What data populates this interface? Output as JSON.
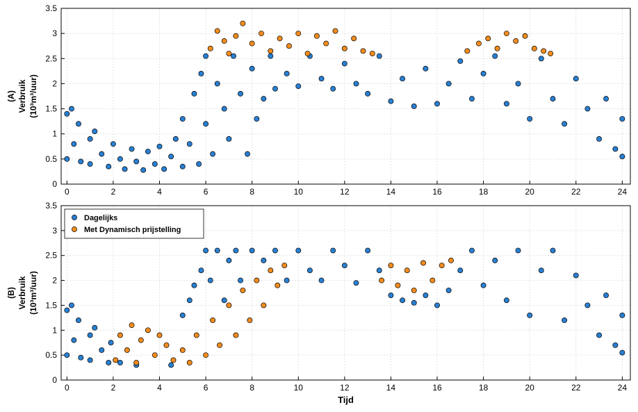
{
  "chart_data": [
    {
      "type": "scatter",
      "panel_label": "(A)",
      "ylabel": [
        "Verbruik",
        "(10³m³/uur)"
      ],
      "xlim": [
        -0.25,
        24.35
      ],
      "xticks": [
        0,
        2,
        4,
        6,
        8,
        10,
        12,
        14,
        16,
        18,
        20,
        22,
        24
      ],
      "ylim": [
        0,
        3.5
      ],
      "yticks": [
        0,
        0.5,
        1,
        1.5,
        2,
        2.5,
        3,
        3.5
      ],
      "grid": true,
      "series": [
        {
          "color": "#2a7fd0",
          "x": [
            0,
            0,
            0.2,
            0.3,
            0.5,
            0.6,
            1,
            1,
            1.2,
            1.5,
            1.8,
            2,
            2.3,
            2.5,
            2.8,
            3,
            3.3,
            3.5,
            3.8,
            4,
            4.2,
            4.5,
            4.7,
            5,
            5,
            5.3,
            5.5,
            5.7,
            5.8,
            6,
            6,
            6.3,
            6.5,
            6.8,
            7,
            7.2,
            7.5,
            7.8,
            8,
            8.2,
            8.5,
            8.8,
            9,
            9.5,
            10,
            10.5,
            11,
            11.5,
            12,
            12.5,
            13,
            13.5,
            14,
            14.5,
            15,
            15.5,
            16,
            16.5,
            17,
            17.5,
            18,
            18.5,
            19,
            19.5,
            20,
            20.5,
            21,
            21.5,
            22,
            22.5,
            23,
            23.3,
            23.7,
            24,
            24
          ],
          "values": [
            0.5,
            1.4,
            1.5,
            0.8,
            1.2,
            0.45,
            0.4,
            0.9,
            1.05,
            0.6,
            0.35,
            0.8,
            0.5,
            0.3,
            0.7,
            0.45,
            0.28,
            0.65,
            0.4,
            0.75,
            0.3,
            0.55,
            0.9,
            0.35,
            1.3,
            0.8,
            1.8,
            0.4,
            2.2,
            2.55,
            1.2,
            0.6,
            2.0,
            1.5,
            0.9,
            2.55,
            1.8,
            0.6,
            2.3,
            1.3,
            1.7,
            2.55,
            1.9,
            2.2,
            1.95,
            2.55,
            2.1,
            1.9,
            2.4,
            2.0,
            1.8,
            2.55,
            1.65,
            2.1,
            1.55,
            2.3,
            1.6,
            2.0,
            2.45,
            1.7,
            2.2,
            2.55,
            1.6,
            2.0,
            1.3,
            2.5,
            1.7,
            1.2,
            2.1,
            1.5,
            0.9,
            1.7,
            0.7,
            0.55,
            1.3
          ]
        },
        {
          "color": "#f28c1e",
          "x": [
            6.2,
            6.5,
            6.8,
            7,
            7.3,
            7.6,
            8,
            8.4,
            8.8,
            9.2,
            9.6,
            10,
            10.4,
            10.8,
            11.2,
            11.6,
            12,
            12.4,
            12.8,
            13.2,
            17.3,
            17.8,
            18.2,
            18.6,
            19,
            19.4,
            19.8,
            20.2,
            20.6,
            20.9
          ],
          "values": [
            2.7,
            3.05,
            2.85,
            2.6,
            2.95,
            3.2,
            2.8,
            3.0,
            2.65,
            2.9,
            2.75,
            3.0,
            2.6,
            2.95,
            2.8,
            3.05,
            2.7,
            2.9,
            2.65,
            2.6,
            2.65,
            2.8,
            2.9,
            2.7,
            3.0,
            2.85,
            2.95,
            2.7,
            2.65,
            2.6
          ]
        }
      ]
    },
    {
      "type": "scatter",
      "panel_label": "(B)",
      "ylabel": [
        "Verbruik",
        "(10³m³/uur)"
      ],
      "xlabel": "Tijd",
      "xlim": [
        -0.25,
        24.35
      ],
      "xticks": [
        0,
        2,
        4,
        6,
        8,
        10,
        12,
        14,
        16,
        18,
        20,
        22,
        24
      ],
      "ylim": [
        0,
        3.5
      ],
      "yticks": [
        0,
        0.5,
        1,
        1.5,
        2,
        2.5,
        3,
        3.5
      ],
      "grid": true,
      "legend": "upper left",
      "series": [
        {
          "name": "Dagelijks",
          "color": "#2a7fd0",
          "x": [
            0,
            0,
            0.2,
            0.3,
            0.5,
            0.6,
            1,
            1,
            1.2,
            1.5,
            1.8,
            1.9,
            2.3,
            3,
            4.5,
            5,
            5.3,
            5.5,
            5.8,
            6,
            6.2,
            6.5,
            6.8,
            7,
            7.3,
            7.5,
            8,
            8.5,
            9,
            9.5,
            10,
            10.5,
            11,
            11.5,
            12,
            12.5,
            13,
            13.5,
            14,
            14.5,
            15,
            15.5,
            16,
            16.5,
            17,
            17.5,
            18,
            18.5,
            19,
            19.5,
            20,
            20.5,
            21,
            21.5,
            22,
            22.5,
            23,
            23.3,
            23.7,
            24,
            24
          ],
          "values": [
            0.5,
            1.4,
            1.5,
            0.8,
            1.2,
            0.45,
            0.4,
            0.9,
            1.05,
            0.6,
            0.35,
            0.75,
            0.35,
            0.3,
            0.3,
            1.3,
            1.6,
            1.9,
            2.2,
            2.6,
            2.0,
            2.6,
            1.6,
            2.4,
            2.6,
            2.0,
            2.6,
            2.4,
            2.6,
            2.0,
            2.6,
            2.2,
            2.0,
            2.6,
            2.3,
            1.95,
            2.6,
            2.2,
            1.7,
            1.6,
            1.55,
            1.7,
            1.5,
            1.8,
            2.2,
            2.6,
            1.9,
            2.4,
            1.6,
            2.6,
            1.3,
            2.2,
            2.6,
            1.2,
            2.1,
            1.5,
            0.9,
            1.7,
            0.7,
            0.55,
            1.3
          ]
        },
        {
          "name": "Met Dynamisch prijstelling",
          "color": "#f28c1e",
          "x": [
            2.1,
            2.3,
            2.6,
            2.8,
            3,
            3.2,
            3.5,
            3.8,
            4,
            4.3,
            4.6,
            5,
            5.3,
            5.6,
            6,
            6.3,
            6.6,
            7,
            7.3,
            7.6,
            7.9,
            8.2,
            8.5,
            8.8,
            9.1,
            9.4,
            13.6,
            14,
            14.3,
            14.7,
            15,
            15.4,
            15.8,
            16.2,
            16.6
          ],
          "values": [
            0.4,
            0.9,
            0.6,
            1.1,
            0.35,
            0.8,
            1.0,
            0.5,
            0.9,
            0.7,
            0.4,
            0.6,
            0.35,
            0.9,
            0.5,
            1.2,
            0.7,
            1.5,
            0.9,
            1.8,
            1.2,
            2.0,
            1.5,
            2.2,
            1.9,
            2.3,
            2.0,
            2.3,
            1.9,
            2.2,
            1.8,
            2.35,
            2.0,
            2.3,
            2.4
          ]
        }
      ]
    }
  ]
}
